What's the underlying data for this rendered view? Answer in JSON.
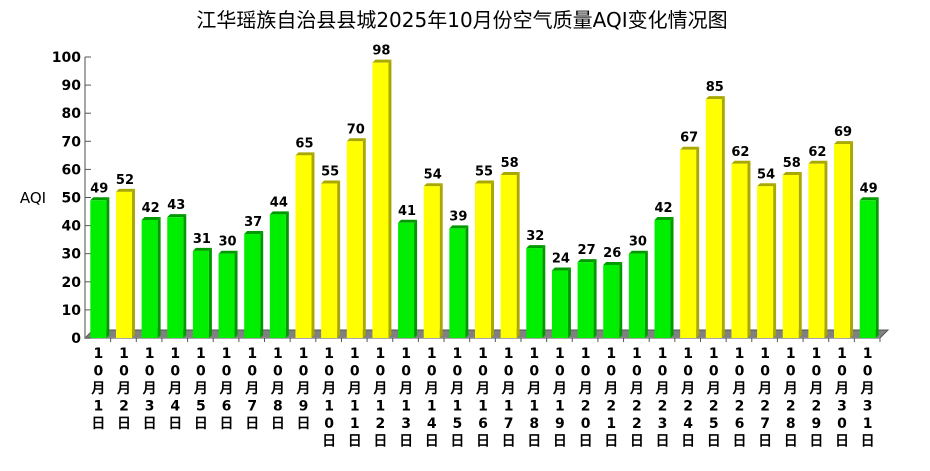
{
  "chart_data": {
    "type": "bar",
    "title": "江华瑶族自治县县城2025年10月份空气质量AQI变化情况图",
    "xlabel": "",
    "ylabel": "AQI",
    "ylim": [
      0,
      100
    ],
    "yticks": [
      0,
      10,
      20,
      30,
      40,
      50,
      60,
      70,
      80,
      90,
      100
    ],
    "categories": [
      "10月1日",
      "10月2日",
      "10月3日",
      "10月4日",
      "10月5日",
      "10月6日",
      "10月7日",
      "10月8日",
      "10月9日",
      "10月10日",
      "10月11日",
      "10月12日",
      "10月13日",
      "10月14日",
      "10月15日",
      "10月16日",
      "10月17日",
      "10月18日",
      "10月19日",
      "10月20日",
      "10月21日",
      "10月22日",
      "10月23日",
      "10月24日",
      "10月25日",
      "10月26日",
      "10月27日",
      "10月28日",
      "10月29日",
      "10月30日",
      "10月31日"
    ],
    "values": [
      49,
      52,
      42,
      43,
      31,
      30,
      37,
      44,
      65,
      55,
      70,
      98,
      41,
      54,
      39,
      55,
      58,
      32,
      24,
      27,
      26,
      30,
      42,
      67,
      85,
      62,
      54,
      58,
      62,
      69,
      49
    ],
    "grid": false,
    "legend": "none",
    "colors": {
      "good": "#00ee00",
      "good_side": "#009900",
      "moderate": "#ffff00",
      "moderate_side": "#a8a800",
      "floor": "#808080"
    },
    "threshold_good": 50
  }
}
